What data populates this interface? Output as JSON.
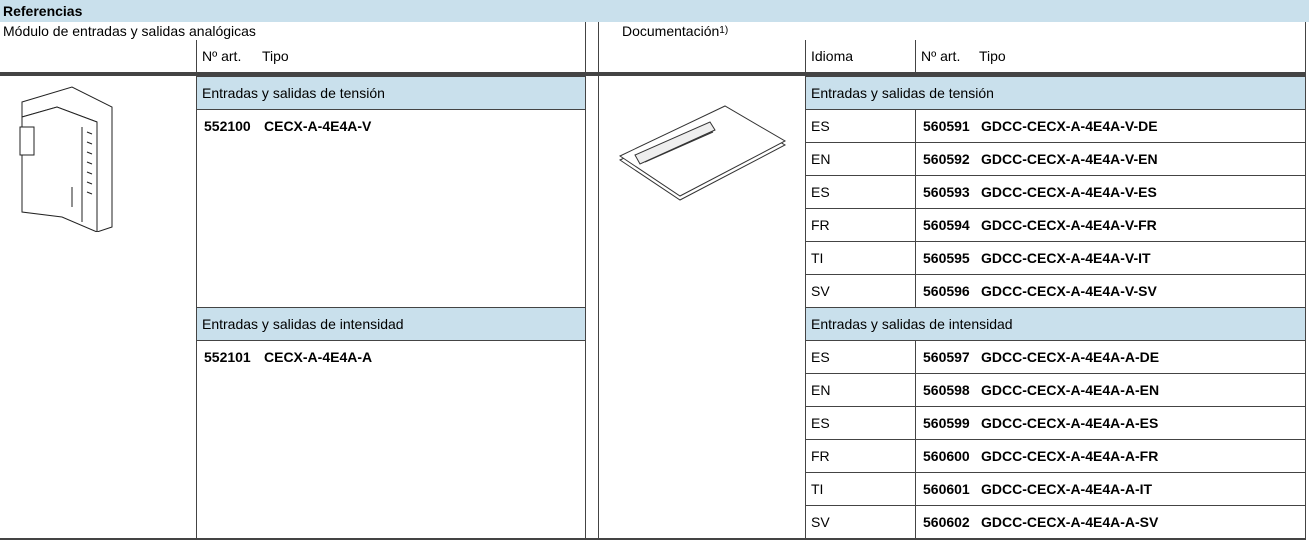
{
  "header": {
    "title": "Referencias"
  },
  "left": {
    "title": "Módulo de entradas y salidas analógicas",
    "columns": [
      "Nº art.",
      "Tipo"
    ],
    "groups": [
      {
        "title": "Entradas y salidas de tensión",
        "rows": [
          [
            "552100",
            "CECX-A-4E4A-V"
          ]
        ]
      },
      {
        "title": "Entradas y salidas de intensidad",
        "rows": [
          [
            "552101",
            "CECX-A-4E4A-A"
          ]
        ]
      }
    ]
  },
  "right": {
    "title": "Documentación",
    "footnote": "1)",
    "columns": [
      "Idioma",
      "Nº art.",
      "Tipo"
    ],
    "groups": [
      {
        "title": "Entradas y salidas de tensión",
        "rows": [
          [
            "ES",
            "560591",
            "GDCC-CECX-A-4E4A-V-DE"
          ],
          [
            "EN",
            "560592",
            "GDCC-CECX-A-4E4A-V-EN"
          ],
          [
            "ES",
            "560593",
            "GDCC-CECX-A-4E4A-V-ES"
          ],
          [
            "FR",
            "560594",
            "GDCC-CECX-A-4E4A-V-FR"
          ],
          [
            "TI",
            "560595",
            "GDCC-CECX-A-4E4A-V-IT"
          ],
          [
            "SV",
            "560596",
            "GDCC-CECX-A-4E4A-V-SV"
          ]
        ]
      },
      {
        "title": "Entradas y salidas de intensidad",
        "rows": [
          [
            "ES",
            "560597",
            "GDCC-CECX-A-4E4A-A-DE"
          ],
          [
            "EN",
            "560598",
            "GDCC-CECX-A-4E4A-A-EN"
          ],
          [
            "ES",
            "560599",
            "GDCC-CECX-A-4E4A-A-ES"
          ],
          [
            "FR",
            "560600",
            "GDCC-CECX-A-4E4A-A-FR"
          ],
          [
            "TI",
            "560601",
            "GDCC-CECX-A-4E4A-A-IT"
          ],
          [
            "SV",
            "560602",
            "GDCC-CECX-A-4E4A-A-SV"
          ]
        ]
      }
    ]
  }
}
